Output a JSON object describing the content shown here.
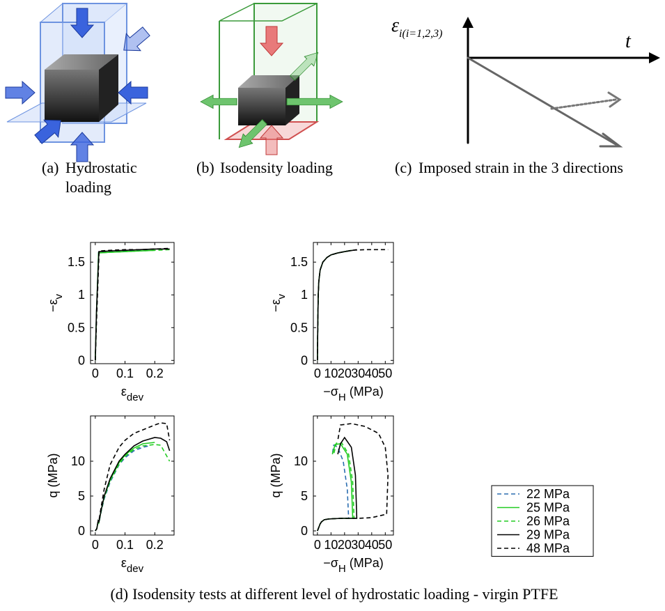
{
  "figures": [
    {
      "label": "(a)",
      "caption": [
        "Hydrostatic",
        "loading"
      ]
    },
    {
      "label": "(b)",
      "caption": [
        "Isodensity loading"
      ]
    },
    {
      "label": "(c)",
      "caption": [
        "Imposed strain in the 3 directions"
      ],
      "y_label": {
        "text": "ε",
        "sub": "i(i=1,2,3)"
      },
      "x_label": "t"
    }
  ],
  "chart_caption": {
    "label": "(d)",
    "text": "Isodensity tests at different level of hydrostatic loading - virgin PTFE"
  },
  "chart_data": [
    {
      "type": "line",
      "xlabel": {
        "text": "ε",
        "sub": "dev"
      },
      "ylabel": {
        "text": "−ε",
        "sub": "v"
      },
      "xlim": [
        -0.016,
        0.265
      ],
      "ylim": [
        -0.05,
        1.8
      ],
      "xticks": [
        0,
        0.1,
        0.2
      ],
      "yticks": [
        0,
        0.5,
        1,
        1.5
      ],
      "series": [
        {
          "name": "22 MPa",
          "color": "#2a6db0",
          "dash": true,
          "x": [
            0,
            0.004,
            0.011,
            0.05,
            0.1,
            0.15,
            0.18
          ],
          "values": [
            0,
            0.7,
            1.65,
            1.66,
            1.67,
            1.68,
            1.68
          ]
        },
        {
          "name": "25 MPa",
          "color": "#22cc22",
          "dash": false,
          "x": [
            0,
            0.004,
            0.011,
            0.05,
            0.1,
            0.15,
            0.2
          ],
          "values": [
            0,
            0.7,
            1.64,
            1.65,
            1.66,
            1.67,
            1.68
          ]
        },
        {
          "name": "26 MPa",
          "color": "#22cc22",
          "dash": true,
          "x": [
            0,
            0.004,
            0.012,
            0.05,
            0.1,
            0.15,
            0.2,
            0.25
          ],
          "values": [
            0,
            0.7,
            1.64,
            1.65,
            1.66,
            1.67,
            1.68,
            1.69
          ]
        },
        {
          "name": "29 MPa",
          "color": "#000000",
          "dash": false,
          "x": [
            0,
            0.004,
            0.012,
            0.05,
            0.1,
            0.15,
            0.2,
            0.25
          ],
          "values": [
            0,
            0.75,
            1.66,
            1.67,
            1.68,
            1.69,
            1.7,
            1.7
          ]
        },
        {
          "name": "48 MPa",
          "color": "#000000",
          "dash": true,
          "x": [
            0,
            0.005,
            0.013,
            0.05,
            0.1,
            0.15,
            0.2,
            0.25
          ],
          "values": [
            0,
            0.7,
            1.67,
            1.68,
            1.69,
            1.69,
            1.7,
            1.71
          ]
        }
      ]
    },
    {
      "type": "line",
      "xlabel": {
        "text": "−σ",
        "sub": "H",
        "suffix": " (MPa)"
      },
      "ylabel": {
        "text": "−ε",
        "sub": "v"
      },
      "xlim": [
        -3,
        56
      ],
      "ylim": [
        -0.05,
        1.8
      ],
      "xticks": [
        0,
        10,
        20,
        30,
        40,
        50
      ],
      "yticks": [
        0,
        0.5,
        1,
        1.5
      ],
      "series": [
        {
          "name": "22 MPa",
          "color": "#2a6db0",
          "dash": true,
          "x": [
            0,
            0.3,
            0.6,
            1,
            2,
            4,
            7,
            10,
            15,
            20,
            22
          ],
          "values": [
            0,
            0.6,
            1.0,
            1.2,
            1.38,
            1.5,
            1.57,
            1.61,
            1.64,
            1.66,
            1.67
          ]
        },
        {
          "name": "25 MPa",
          "color": "#22cc22",
          "dash": false,
          "x": [
            0,
            0.3,
            0.6,
            1,
            2,
            4,
            7,
            10,
            15,
            20,
            25
          ],
          "values": [
            0,
            0.6,
            1.0,
            1.2,
            1.38,
            1.5,
            1.57,
            1.61,
            1.64,
            1.66,
            1.68
          ]
        },
        {
          "name": "26 MPa",
          "color": "#22cc22",
          "dash": true,
          "x": [
            0,
            0.3,
            0.6,
            1,
            2,
            4,
            7,
            10,
            15,
            20,
            26
          ],
          "values": [
            0,
            0.6,
            1.0,
            1.2,
            1.38,
            1.5,
            1.57,
            1.61,
            1.64,
            1.66,
            1.68
          ]
        },
        {
          "name": "29 MPa",
          "color": "#000000",
          "dash": false,
          "x": [
            0,
            0.3,
            0.6,
            1,
            2,
            4,
            7,
            10,
            15,
            20,
            29
          ],
          "values": [
            0,
            0.6,
            1.0,
            1.2,
            1.38,
            1.5,
            1.57,
            1.61,
            1.64,
            1.66,
            1.69
          ]
        },
        {
          "name": "48 MPa",
          "color": "#000000",
          "dash": true,
          "x": [
            0,
            0.3,
            0.6,
            1,
            2,
            4,
            7,
            10,
            15,
            20,
            25,
            35,
            45,
            52
          ],
          "values": [
            0,
            0.6,
            1.0,
            1.2,
            1.38,
            1.5,
            1.57,
            1.61,
            1.64,
            1.66,
            1.68,
            1.69,
            1.69,
            1.69
          ]
        }
      ]
    },
    {
      "type": "line",
      "xlabel": {
        "text": "ε",
        "sub": "dev"
      },
      "ylabel": {
        "text": "q (MPa)"
      },
      "xlim": [
        -0.016,
        0.265
      ],
      "ylim": [
        -0.6,
        16.5
      ],
      "xticks": [
        0,
        0.1,
        0.2
      ],
      "yticks": [
        0,
        5,
        10
      ],
      "series": [
        {
          "name": "22 MPa",
          "color": "#2a6db0",
          "dash": true,
          "x": [
            0,
            0.005,
            0.01,
            0.012,
            0.02,
            0.03,
            0.05,
            0.08,
            0.1,
            0.13,
            0.16,
            0.18
          ],
          "values": [
            0,
            0.3,
            1.3,
            1.1,
            2.8,
            4.6,
            7,
            9.5,
            10.5,
            11.5,
            12,
            12.2
          ]
        },
        {
          "name": "25 MPa",
          "color": "#22cc22",
          "dash": false,
          "x": [
            0,
            0.005,
            0.01,
            0.012,
            0.02,
            0.03,
            0.05,
            0.08,
            0.1,
            0.13,
            0.16,
            0.2
          ],
          "values": [
            0,
            0.3,
            1.4,
            1.2,
            3,
            4.9,
            7.3,
            9.8,
            10.9,
            11.9,
            12.5,
            12.7
          ]
        },
        {
          "name": "26 MPa",
          "color": "#22cc22",
          "dash": true,
          "x": [
            0,
            0.005,
            0.01,
            0.012,
            0.02,
            0.03,
            0.05,
            0.08,
            0.1,
            0.13,
            0.16,
            0.2,
            0.22,
            0.25
          ],
          "values": [
            0,
            0.3,
            1.4,
            1.2,
            2.9,
            4.8,
            7.2,
            9.6,
            10.7,
            11.7,
            12.2,
            12.4,
            12.3,
            10
          ]
        },
        {
          "name": "29 MPa",
          "color": "#000000",
          "dash": false,
          "x": [
            0,
            0.005,
            0.01,
            0.012,
            0.02,
            0.03,
            0.05,
            0.08,
            0.1,
            0.13,
            0.16,
            0.2,
            0.22,
            0.24,
            0.25
          ],
          "values": [
            0,
            0.3,
            1.5,
            1.2,
            3,
            5,
            7.5,
            10,
            11,
            12.2,
            12.9,
            13.4,
            13.3,
            12.8,
            11.5
          ]
        },
        {
          "name": "48 MPa",
          "color": "#000000",
          "dash": true,
          "x": [
            0,
            0.005,
            0.01,
            0.012,
            0.02,
            0.03,
            0.05,
            0.08,
            0.1,
            0.13,
            0.16,
            0.2,
            0.22,
            0.24,
            0.25
          ],
          "values": [
            0,
            0.3,
            1.5,
            1.4,
            3.5,
            6,
            9.5,
            12,
            13,
            14,
            14.5,
            15.2,
            15.5,
            15.4,
            13
          ]
        }
      ]
    },
    {
      "type": "line",
      "xlabel": {
        "text": "−σ",
        "sub": "H",
        "suffix": " (MPa)"
      },
      "ylabel": {
        "text": "q (MPa)"
      },
      "xlim": [
        -3,
        56
      ],
      "ylim": [
        -0.6,
        16.5
      ],
      "xticks": [
        0,
        10,
        20,
        30,
        40,
        50
      ],
      "yticks": [
        0,
        5,
        10
      ],
      "legend": "outside-right",
      "series": [
        {
          "name": "22 MPa",
          "color": "#2a6db0",
          "dash": true,
          "x": [
            0,
            1,
            2,
            3,
            5,
            8,
            12,
            18,
            23,
            22,
            19,
            15,
            12,
            11
          ],
          "values": [
            0,
            0.5,
            1,
            1.3,
            1.6,
            1.7,
            1.75,
            1.8,
            1.8,
            6,
            10,
            12,
            12.3,
            11
          ]
        },
        {
          "name": "25 MPa",
          "color": "#22cc22",
          "dash": false,
          "x": [
            0,
            1,
            2,
            3,
            5,
            8,
            12,
            18,
            26,
            25,
            22,
            17,
            13,
            11
          ],
          "values": [
            0,
            0.5,
            1,
            1.3,
            1.6,
            1.7,
            1.75,
            1.8,
            1.8,
            7,
            11,
            12.5,
            12.4,
            11
          ]
        },
        {
          "name": "26 MPa",
          "color": "#22cc22",
          "dash": true,
          "x": [
            0,
            1,
            2,
            3,
            5,
            8,
            12,
            18,
            27,
            26,
            23,
            18,
            14,
            12
          ],
          "values": [
            0,
            0.5,
            1,
            1.3,
            1.6,
            1.7,
            1.75,
            1.8,
            1.8,
            7,
            11,
            12.6,
            12.6,
            11
          ]
        },
        {
          "name": "29 MPa",
          "color": "#000000",
          "dash": false,
          "x": [
            0,
            1,
            2,
            3,
            5,
            8,
            12,
            18,
            29,
            28,
            25,
            20,
            17,
            15
          ],
          "values": [
            0,
            0.5,
            1,
            1.3,
            1.6,
            1.7,
            1.75,
            1.8,
            1.8,
            8,
            12,
            13.4,
            12.5,
            11
          ]
        },
        {
          "name": "48 MPa",
          "color": "#000000",
          "dash": true,
          "x": [
            0,
            1,
            2,
            3,
            5,
            8,
            12,
            18,
            30,
            40,
            51,
            52,
            50,
            45,
            35,
            25,
            17,
            15
          ],
          "values": [
            0,
            0.5,
            1,
            1.3,
            1.6,
            1.7,
            1.75,
            1.8,
            1.8,
            1.9,
            2.4,
            8,
            12,
            14,
            15,
            15.4,
            15.2,
            13
          ]
        }
      ]
    }
  ]
}
